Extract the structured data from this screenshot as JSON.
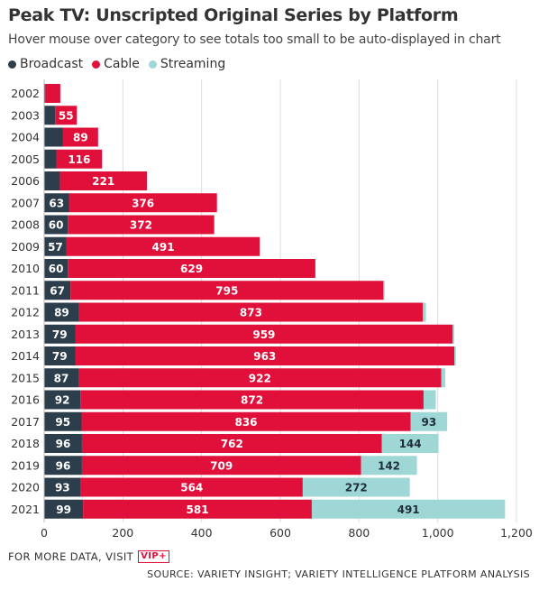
{
  "header": {
    "title": "Peak TV: Unscripted Original Series by Platform",
    "subtitle": "Hover mouse over category to see totals too small to be auto-displayed in chart"
  },
  "legend": [
    {
      "label": "Broadcast",
      "color": "#2c3e4c"
    },
    {
      "label": "Cable",
      "color": "#e0103a"
    },
    {
      "label": "Streaming",
      "color": "#9fd6d6"
    }
  ],
  "footer": {
    "more_data": "FOR MORE DATA, VISIT",
    "vip_badge": "VIP+",
    "source": "SOURCE: VARIETY INSIGHT; VARIETY INTELLIGENCE PLATFORM ANALYSIS"
  },
  "chart_data": {
    "type": "bar",
    "orientation": "horizontal",
    "stacked": true,
    "categories": [
      "2002",
      "2003",
      "2004",
      "2005",
      "2006",
      "2007",
      "2008",
      "2009",
      "2010",
      "2011",
      "2012",
      "2013",
      "2014",
      "2015",
      "2016",
      "2017",
      "2018",
      "2019",
      "2020",
      "2021"
    ],
    "series": [
      {
        "name": "Broadcast",
        "color": "#2c3e4c",
        "values": [
          3,
          28,
          48,
          31,
          40,
          63,
          60,
          57,
          60,
          67,
          89,
          79,
          79,
          87,
          92,
          95,
          96,
          96,
          93,
          99
        ]
      },
      {
        "name": "Cable",
        "color": "#e0103a",
        "values": [
          38,
          55,
          89,
          116,
          221,
          376,
          372,
          491,
          629,
          795,
          873,
          959,
          963,
          922,
          872,
          836,
          762,
          709,
          564,
          581
        ]
      },
      {
        "name": "Streaming",
        "color": "#9fd6d6",
        "values": [
          0,
          0,
          0,
          0,
          0,
          0,
          0,
          0,
          0,
          3,
          8,
          4,
          4,
          10,
          31,
          93,
          144,
          142,
          272,
          491
        ]
      }
    ],
    "labels": {
      "Broadcast": [
        "",
        "",
        "",
        "",
        "",
        "63",
        "60",
        "57",
        "60",
        "67",
        "89",
        "79",
        "79",
        "87",
        "92",
        "95",
        "96",
        "96",
        "93",
        "99"
      ],
      "Cable": [
        "",
        "55",
        "89",
        "116",
        "221",
        "376",
        "372",
        "491",
        "629",
        "795",
        "873",
        "959",
        "963",
        "922",
        "872",
        "836",
        "762",
        "709",
        "564",
        "581"
      ],
      "Streaming": [
        "",
        "",
        "",
        "",
        "",
        "",
        "",
        "",
        "",
        "",
        "",
        "",
        "",
        "",
        "",
        "93",
        "144",
        "142",
        "272",
        "491"
      ]
    },
    "xlim": [
      0,
      1200
    ],
    "xticks": [
      "0",
      "200",
      "400",
      "600",
      "800",
      "1,000",
      "1,200"
    ],
    "xtick_values": [
      0,
      200,
      400,
      600,
      800,
      1000,
      1200
    ],
    "grid": true
  }
}
